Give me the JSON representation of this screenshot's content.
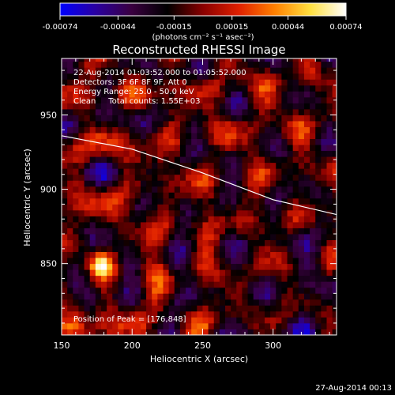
{
  "colorbar": {
    "tick_labels": [
      "-0.00074",
      "-0.00044",
      "-0.00015",
      "0.00015",
      "0.00044",
      "0.00074"
    ],
    "tick_values": [
      -0.00074,
      -0.00044,
      -0.00015,
      0.00015,
      0.00044,
      0.00074
    ],
    "range": [
      -0.00074,
      0.00074
    ],
    "units": "(photons cm⁻² s⁻¹ asec⁻²)",
    "stops": [
      "#0000ff",
      "#2a00a0",
      "#3a0040",
      "#000000",
      "#8a0000",
      "#e02000",
      "#ff8000",
      "#ffe040",
      "#ffffff"
    ]
  },
  "chart_data": {
    "type": "heatmap",
    "title": "Reconstructed RHESSI Image",
    "xlabel": "Heliocentric X (arcsec)",
    "ylabel": "Heliocentric Y (arcsec)",
    "xlim": [
      150,
      345
    ],
    "ylim": [
      802,
      988
    ],
    "x_ticks": [
      150,
      200,
      250,
      300
    ],
    "y_ticks": [
      850,
      900,
      950
    ],
    "x_tick_labels": [
      "150",
      "200",
      "250",
      "300"
    ],
    "y_tick_labels": [
      "850",
      "900",
      "950"
    ],
    "info_lines": [
      "22-Aug-2014 01:03:52.000 to 01:05:52.000",
      "Detectors: 3F 6F 8F 9F, Att 0",
      "Energy Range: 25.0 - 50.0 keV",
      "Clean     Total counts: 1.55E+03"
    ],
    "peak_label": "Position of Peak = [176,848]",
    "peak": [
      176,
      848
    ],
    "limb": [
      [
        150,
        936
      ],
      [
        200,
        927
      ],
      [
        250,
        911
      ],
      [
        300,
        893
      ],
      [
        345,
        883
      ]
    ]
  },
  "footer": {
    "timestamp": "27-Aug-2014 00:13"
  }
}
